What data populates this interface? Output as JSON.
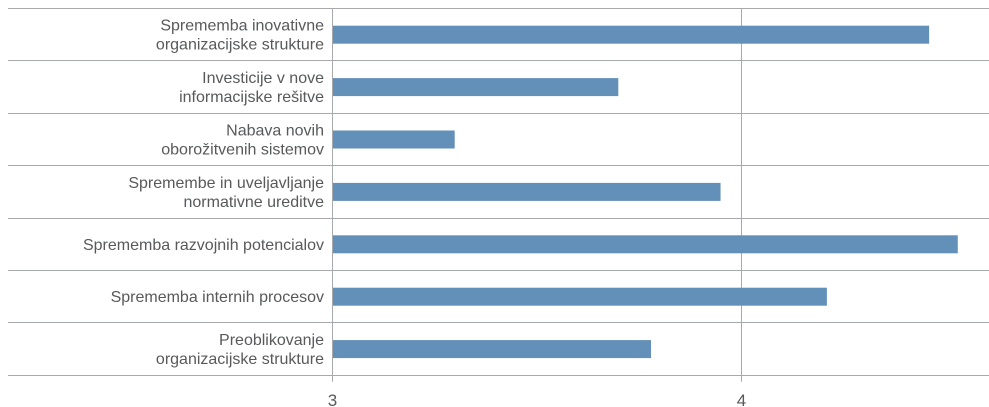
{
  "chart_data": {
    "type": "bar",
    "orientation": "horizontal",
    "categories": [
      [
        "Sprememba inovativne",
        "organizacijske strukture"
      ],
      [
        "Investicije v nove",
        "informacijske rešitve"
      ],
      [
        "Nabava novih",
        "oborožitvenih sistemov"
      ],
      [
        "Spremembe in uveljavljanje",
        "normativne ureditve"
      ],
      [
        "Sprememba razvojnih potencialov"
      ],
      [
        "Sprememba internih procesov"
      ],
      [
        "Preoblikovanje",
        "organizacijske strukture"
      ]
    ],
    "values": [
      4.46,
      3.7,
      3.3,
      3.95,
      4.53,
      4.21,
      3.78
    ],
    "xlim": [
      3,
      4.6
    ],
    "xticks": [
      "3",
      "4"
    ],
    "grid": true,
    "colors": {
      "bar": "#6390b8",
      "grid": "#a7a9ac",
      "text": "#58595b"
    }
  }
}
